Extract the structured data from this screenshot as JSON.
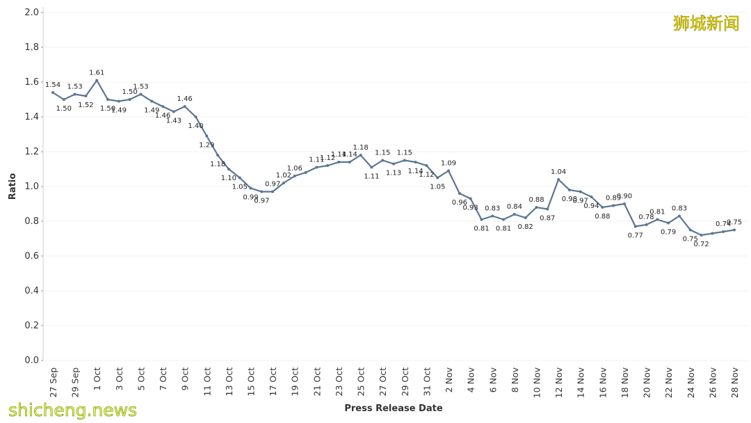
{
  "chart_data": {
    "type": "line",
    "xlabel": "Press Release Date",
    "ylabel": "Ratio",
    "watermarks": [
      "狮城新闻",
      "shicheng.news"
    ],
    "categories": [
      "27 Sep",
      null,
      "29 Sep",
      null,
      "1 Oct",
      null,
      "3 Oct",
      null,
      "5 Oct",
      null,
      "7 Oct",
      null,
      "9 Oct",
      null,
      "11 Oct",
      null,
      "13 Oct",
      null,
      "15 Oct",
      null,
      "17 Oct",
      null,
      "19 Oct",
      null,
      "21 Oct",
      null,
      "23 Oct",
      null,
      "25 Oct",
      null,
      "27 Oct",
      null,
      "29 Oct",
      null,
      "31 Oct",
      null,
      "2 Nov",
      null,
      "4 Nov",
      null,
      "6 Nov",
      null,
      "8 Nov",
      null,
      "10 Nov",
      null,
      "12 Nov",
      null,
      "14 Nov",
      null,
      "16 Nov",
      null,
      "18 Nov",
      null,
      "20 Nov",
      null,
      "22 Nov",
      null,
      "24 Nov",
      null,
      "26 Nov",
      null,
      "28 Nov"
    ],
    "series": [
      {
        "name": "Ratio",
        "color": "#5b7594",
        "values": [
          1.54,
          1.5,
          1.53,
          1.52,
          1.61,
          1.5,
          1.49,
          1.5,
          1.53,
          1.49,
          1.46,
          1.43,
          1.46,
          1.4,
          1.29,
          1.18,
          1.1,
          1.05,
          0.99,
          0.97,
          0.97,
          1.02,
          1.06,
          1.08,
          1.11,
          1.12,
          1.14,
          1.14,
          1.18,
          1.11,
          1.15,
          1.13,
          1.15,
          1.14,
          1.12,
          1.05,
          1.09,
          0.96,
          0.93,
          0.81,
          0.83,
          0.81,
          0.84,
          0.82,
          0.88,
          0.87,
          1.04,
          0.98,
          0.97,
          0.94,
          0.88,
          0.89,
          0.9,
          0.77,
          0.78,
          0.81,
          0.79,
          0.83,
          0.75,
          0.72,
          0.73,
          0.74,
          0.75
        ],
        "value_labels": [
          "1.54",
          "1.50",
          "1.53",
          "1.52",
          "1.61",
          "1.50",
          "1.49",
          "1.50",
          "1.53",
          "1.49",
          "1.46",
          "1.43",
          "1.46",
          "1.40",
          "1.29",
          "1.18",
          "1.10",
          "1.05",
          "0.99",
          "0.97",
          "0.97",
          "1.02",
          "1.06",
          null,
          "1.11",
          "1.12",
          "1.14",
          "1.14",
          "1.18",
          "1.11",
          "1.15",
          "1.13",
          "1.15",
          "1.14",
          "1.12",
          "1.05",
          "1.09",
          "0.96",
          "0.93",
          "0.81",
          "0.83",
          "0.81",
          "0.84",
          "0.82",
          "0.88",
          "0.87",
          "1.04",
          "0.98",
          "0.97",
          "0.94",
          "0.88",
          "0.89",
          "0.90",
          "0.77",
          "0.78",
          "0.81",
          "0.79",
          "0.83",
          "0.75",
          "0.72",
          null,
          "0.74",
          "0.75"
        ]
      }
    ],
    "ylim": [
      0,
      2
    ],
    "yticks": [
      {
        "value": 0,
        "label": "0.0"
      },
      {
        "value": 0.2,
        "label": "0.2"
      },
      {
        "value": 0.4,
        "label": "0.4"
      },
      {
        "value": 0.6,
        "label": "0.6"
      },
      {
        "value": 0.8,
        "label": "0.8"
      },
      {
        "value": 1,
        "label": "1.0"
      },
      {
        "value": 1.2,
        "label": "1.2"
      },
      {
        "value": 1.4,
        "label": "1.4"
      },
      {
        "value": 1.6,
        "label": "1.6"
      },
      {
        "value": 1.8,
        "label": "1.8"
      },
      {
        "value": 2,
        "label": "2.0"
      }
    ],
    "grid": true
  }
}
